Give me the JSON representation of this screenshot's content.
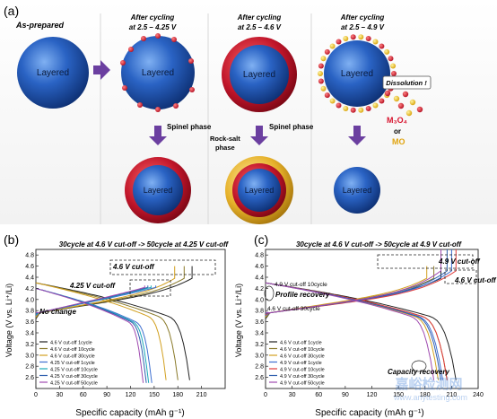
{
  "panel_a": {
    "label": "(a)",
    "col1": {
      "title": "As-prepared",
      "core": "Layered"
    },
    "col2": {
      "title1": "After cycling",
      "title2": "at 2.5 – 4.25 V",
      "core": "Layered",
      "arrow_label": "Spinel phase",
      "bottom_core": "Layered"
    },
    "col3": {
      "title1": "After cycling",
      "title2": "at 2.5 – 4.6 V",
      "core": "Layered",
      "arrow_label": "Spinel phase",
      "side_label1": "Rock-salt",
      "side_label2": "phase",
      "bottom_core": "Layered"
    },
    "col4": {
      "title1": "After cycling",
      "title2": "at 2.5 – 4.9 V",
      "core": "Layered",
      "dissolution": "Dissolution !",
      "m3o4": "M₃O₄",
      "or": "or",
      "mo": "MO",
      "bottom_core": "Layered"
    }
  },
  "chart_data": [
    {
      "type": "line",
      "panel_label": "(b)",
      "title": "30cycle at 4.6 V cut-off -> 50cycle at 4.25 V cut-off",
      "xlabel": "Specific capacity (mAh g⁻¹)",
      "ylabel": "Voltage (V vs. Li⁺/Li)",
      "xlim": [
        0,
        240
      ],
      "ylim": [
        2.4,
        4.9
      ],
      "xticks": [
        "0",
        "30",
        "60",
        "90",
        "120",
        "150",
        "180",
        "210"
      ],
      "yticks": [
        "2.6",
        "2.8",
        "3.0",
        "3.2",
        "3.4",
        "3.6",
        "3.8",
        "4.0",
        "4.2",
        "4.4",
        "4.6",
        "4.8"
      ],
      "annotations": [
        "4.6 V cut-off",
        "4.25 V cut-off",
        "No change"
      ],
      "series": [
        {
          "name": "4.6 V cut-off 1cycle",
          "color": "#222222",
          "charge_cap": 198,
          "charge_v": 4.6,
          "discharge_cap": 195
        },
        {
          "name": "4.6 V cut-off 10cycle",
          "color": "#8a7a2a",
          "charge_cap": 188,
          "charge_v": 4.6,
          "discharge_cap": 180
        },
        {
          "name": "4.6 V cut-off 30cycle",
          "color": "#d2a020",
          "charge_cap": 176,
          "charge_v": 4.6,
          "discharge_cap": 165
        },
        {
          "name": "4.25 V cut-off 1cycle",
          "color": "#3e6fd0",
          "charge_cap": 152,
          "charge_v": 4.25,
          "discharge_cap": 147
        },
        {
          "name": "4.25 V cut-off 10cycle",
          "color": "#1aa9b8",
          "charge_cap": 146,
          "charge_v": 4.25,
          "discharge_cap": 143
        },
        {
          "name": "4.25 V cut-off 30cycle",
          "color": "#2f5fae",
          "charge_cap": 142,
          "charge_v": 4.25,
          "discharge_cap": 140
        },
        {
          "name": "4.25 V cut-off 50cycle",
          "color": "#a04bb0",
          "charge_cap": 138,
          "charge_v": 4.25,
          "discharge_cap": 136
        }
      ]
    },
    {
      "type": "line",
      "panel_label": "(c)",
      "title": "30cycle at 4.6 V cut-off -> 50cycle at 4.9 V cut-off",
      "xlabel": "Specific capacity (mAh g⁻¹)",
      "ylabel": "Voltage (V vs. Li⁺/Li)",
      "xlim": [
        0,
        240
      ],
      "ylim": [
        2.4,
        4.9
      ],
      "xticks": [
        "0",
        "30",
        "60",
        "90",
        "120",
        "150",
        "180",
        "210",
        "240"
      ],
      "yticks": [
        "2.6",
        "2.8",
        "3.0",
        "3.2",
        "3.4",
        "3.6",
        "3.8",
        "4.0",
        "4.2",
        "4.4",
        "4.6",
        "4.8"
      ],
      "annotations": [
        "4.9 V cut-off",
        "4.6 V cut-off",
        "4.9 V cut-off 10cycle",
        "Profile recovery",
        "4.6 V cut-off 30cycle",
        "Capacity recovery"
      ],
      "series": [
        {
          "name": "4.6 V cut-off 1cycle",
          "color": "#222222",
          "charge_cap": 198,
          "charge_v": 4.6,
          "discharge_cap": 215
        },
        {
          "name": "4.6 V cut-off 10cycle",
          "color": "#8a7a2a",
          "charge_cap": 190,
          "charge_v": 4.6,
          "discharge_cap": 205
        },
        {
          "name": "4.6 V cut-off 30cycle",
          "color": "#d2a020",
          "charge_cap": 182,
          "charge_v": 4.6,
          "discharge_cap": 195
        },
        {
          "name": "4.9 V cut-off 1cycle",
          "color": "#3e6fd0",
          "charge_cap": 210,
          "charge_v": 4.9,
          "discharge_cap": 200
        },
        {
          "name": "4.9 V cut-off 10cycle",
          "color": "#e03a3a",
          "charge_cap": 215,
          "charge_v": 4.9,
          "discharge_cap": 205
        },
        {
          "name": "4.9 V cut-off 30cycle",
          "color": "#2f5fae",
          "charge_cap": 205,
          "charge_v": 4.9,
          "discharge_cap": 198
        },
        {
          "name": "4.9 V cut-off 50cycle",
          "color": "#a04bb0",
          "charge_cap": 198,
          "charge_v": 4.9,
          "discharge_cap": 190
        }
      ]
    }
  ],
  "watermark": {
    "line1": "嘉峪检测网",
    "line2": "www.anytesting.com"
  },
  "colors": {
    "sphere": "#1c4fa8",
    "shell_red": "#c0152a",
    "shell_yellow": "#e6b12a",
    "arrow": "#6b3fa0",
    "dot_red": "#d8152f",
    "dot_yellow": "#f2c21b"
  }
}
